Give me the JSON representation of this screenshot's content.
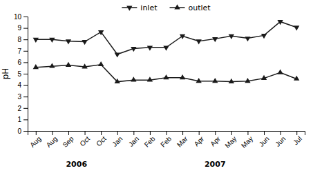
{
  "chart_data": {
    "type": "line",
    "categories": [
      "Aug",
      "Aug",
      "Sep",
      "Oct",
      "Oct",
      "Jan",
      "Jan",
      "Feb",
      "Feb",
      "Mar",
      "Apr",
      "Apr",
      "May",
      "May",
      "Jun",
      "Jun",
      "Jul"
    ],
    "series": [
      {
        "name": "inlet",
        "color": "#1a1a1a",
        "marker": "triangle-down",
        "values": [
          8.0,
          8.0,
          7.85,
          7.8,
          8.65,
          6.7,
          7.2,
          7.3,
          7.3,
          8.3,
          7.85,
          8.05,
          8.3,
          8.1,
          8.35,
          9.55,
          9.05
        ]
      },
      {
        "name": "outlet",
        "color": "#1a1a1a",
        "marker": "triangle-up",
        "values": [
          5.55,
          5.65,
          5.75,
          5.6,
          5.8,
          4.3,
          4.45,
          4.45,
          4.65,
          4.65,
          4.35,
          4.35,
          4.3,
          4.35,
          4.6,
          5.1,
          4.55
        ]
      }
    ],
    "y_label": "pH",
    "ylim": [
      0,
      10
    ],
    "yticks": [
      0,
      1,
      2,
      3,
      4,
      5,
      6,
      7,
      8,
      9,
      10
    ],
    "annotations": [
      {
        "text": "2006",
        "x": 2.5
      },
      {
        "text": "2007",
        "x": 11.0
      }
    ]
  }
}
